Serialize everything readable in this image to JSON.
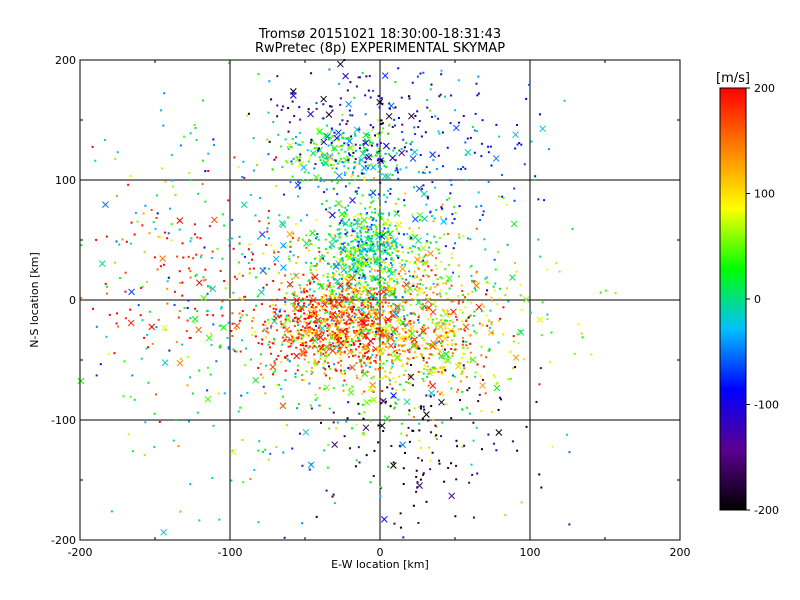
{
  "chart_data": {
    "type": "scatter",
    "title": "Tromsø 20151021 18:30:00-18:31:43",
    "subtitle": "RwPretec (8p) EXPERIMENTAL SKYMAP",
    "xlabel": "E-W location [km]",
    "ylabel": "N-S location [km]",
    "xlim": [
      -200,
      200
    ],
    "ylim": [
      -200,
      200
    ],
    "xticks": [
      "-200",
      "-100",
      "0",
      "100",
      "200"
    ],
    "yticks": [
      "-200",
      "-100",
      "0",
      "100",
      "200"
    ],
    "grid": true,
    "grid_lines": [
      -100,
      0,
      100
    ],
    "colorbar": {
      "label": "[m/s]",
      "range": [
        -200,
        200
      ],
      "ticks": [
        "200",
        "100",
        "0",
        "-100",
        "-200"
      ],
      "colors": [
        "#000000",
        "#5a0090",
        "#0000ff",
        "#00c0ff",
        "#00ff00",
        "#ffff00",
        "#ff8000",
        "#ff0000"
      ]
    },
    "markers": [
      "dot",
      "x"
    ],
    "clusters": [
      {
        "x": -30,
        "y": -20,
        "spread": [
          25,
          20
        ],
        "count": 700,
        "value_mean": 180
      },
      {
        "x": 20,
        "y": -25,
        "spread": [
          30,
          25
        ],
        "count": 450,
        "value_mean": 140
      },
      {
        "x": -10,
        "y": 40,
        "spread": [
          18,
          20
        ],
        "count": 500,
        "value_mean": 10
      },
      {
        "x": -25,
        "y": 120,
        "spread": [
          20,
          12
        ],
        "count": 200,
        "value_mean": 20
      },
      {
        "x": 10,
        "y": -10,
        "spread": [
          45,
          45
        ],
        "count": 650,
        "value_mean": 60
      },
      {
        "x": -130,
        "y": 20,
        "spread": [
          40,
          45
        ],
        "count": 150,
        "value_mean": 190
      },
      {
        "x": 30,
        "y": -110,
        "spread": [
          35,
          40
        ],
        "count": 140,
        "value_mean": -190
      },
      {
        "x": 30,
        "y": 110,
        "spread": [
          40,
          35
        ],
        "count": 180,
        "value_mean": -60
      },
      {
        "x": -20,
        "y": 150,
        "spread": [
          30,
          25
        ],
        "count": 130,
        "value_mean": -140
      },
      {
        "x": -60,
        "y": 0,
        "spread": [
          80,
          90
        ],
        "count": 500,
        "value_mean": 0
      }
    ]
  }
}
